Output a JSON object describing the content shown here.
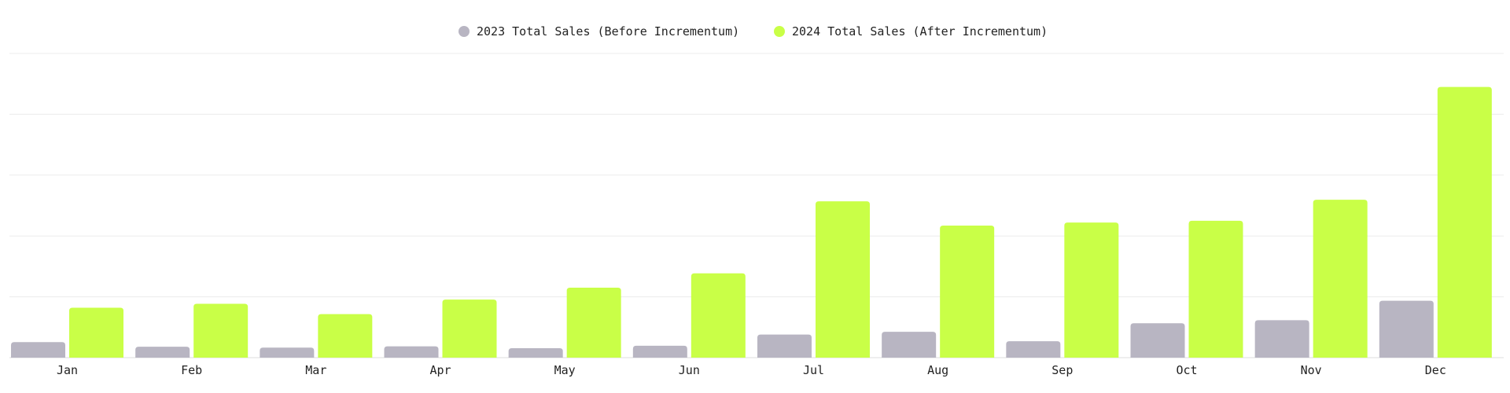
{
  "chart_data": {
    "type": "bar",
    "categories": [
      "Jan",
      "Feb",
      "Mar",
      "Apr",
      "May",
      "Jun",
      "Jul",
      "Aug",
      "Sep",
      "Oct",
      "Nov",
      "Dec"
    ],
    "series": [
      {
        "name": "2023 Total Sales (Before Incrementum)",
        "color": "#b8b5c2",
        "values": [
          5.1,
          3.6,
          3.3,
          3.7,
          3.1,
          3.9,
          7.6,
          8.5,
          5.4,
          11.3,
          12.3,
          18.7
        ]
      },
      {
        "name": "2024 Total Sales (After Incrementum)",
        "color": "#c9ff47",
        "values": [
          16.4,
          17.7,
          14.3,
          19.1,
          23.0,
          27.7,
          51.4,
          43.4,
          44.4,
          45.0,
          51.9,
          89.0
        ]
      }
    ],
    "ylim": [
      0,
      100
    ],
    "y_gridlines": [
      0,
      20,
      40,
      60,
      80,
      100
    ],
    "y_tick_labels_shown": false,
    "grid": true,
    "legend_position": "top-center"
  }
}
